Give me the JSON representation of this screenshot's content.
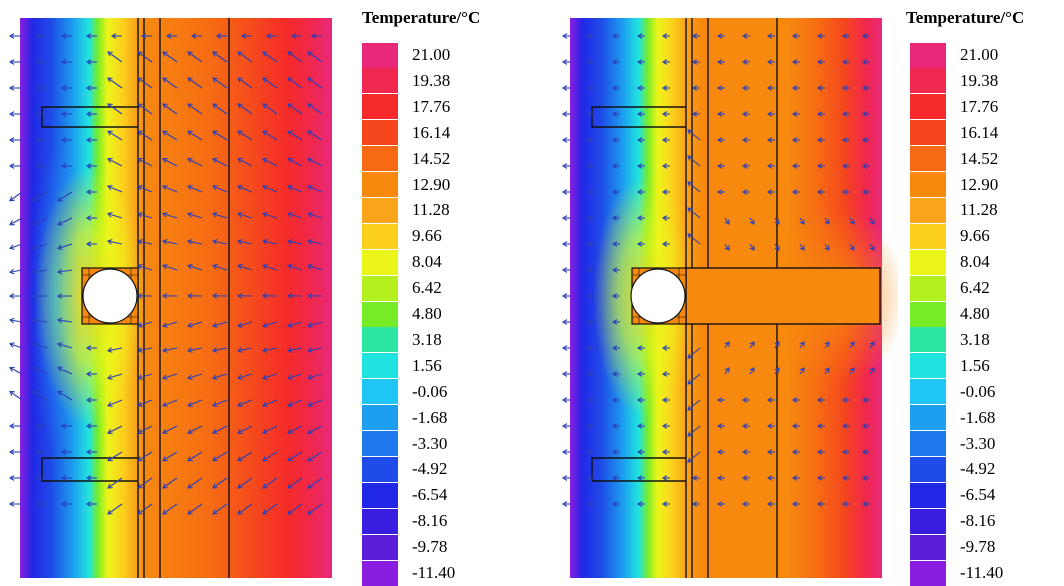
{
  "legend": {
    "title": "Temperature/°C",
    "levels": [
      {
        "value": "21.00",
        "color": "#e8287a"
      },
      {
        "value": "19.38",
        "color": "#f0284f"
      },
      {
        "value": "17.76",
        "color": "#f52a2a"
      },
      {
        "value": "16.14",
        "color": "#f5461e"
      },
      {
        "value": "14.52",
        "color": "#f66a14"
      },
      {
        "value": "12.90",
        "color": "#f7890f"
      },
      {
        "value": "11.28",
        "color": "#f8a51a"
      },
      {
        "value": "9.66",
        "color": "#fcd01c"
      },
      {
        "value": "8.04",
        "color": "#ebf51a"
      },
      {
        "value": "6.42",
        "color": "#b4f01e"
      },
      {
        "value": "4.80",
        "color": "#78eb28"
      },
      {
        "value": "3.18",
        "color": "#2ee6a3"
      },
      {
        "value": "1.56",
        "color": "#20e3df"
      },
      {
        "value": "-0.06",
        "color": "#1ec5f5"
      },
      {
        "value": "-1.68",
        "color": "#1d9eef"
      },
      {
        "value": "-3.30",
        "color": "#1e78ec"
      },
      {
        "value": "-4.92",
        "color": "#1f4be8"
      },
      {
        "value": "-6.54",
        "color": "#2128e5"
      },
      {
        "value": "-8.16",
        "color": "#3a1ee0"
      },
      {
        "value": "-9.78",
        "color": "#5a1ed8"
      },
      {
        "value": "-11.40",
        "color": "#8a1ee0"
      }
    ]
  },
  "colors": {
    "arrow": "#2a3fb8",
    "outline": "#111111"
  }
}
